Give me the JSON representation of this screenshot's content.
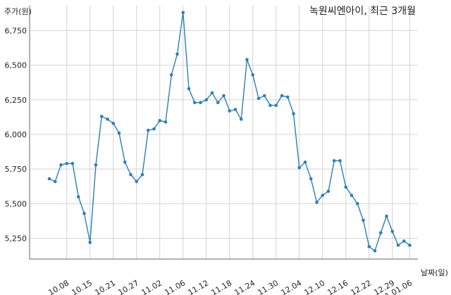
{
  "chart_data": {
    "type": "line",
    "title": "녹원씨엔아이, 최근 3개월",
    "ylabel": "주가(원)",
    "xlabel": "날짜(일)",
    "ylim": [
      5100,
      6930
    ],
    "yticks": [
      5250,
      5500,
      5750,
      6000,
      6250,
      6500,
      6750
    ],
    "ytick_labels": [
      "5,250",
      "5,500",
      "5,750",
      "6,000",
      "6,250",
      "6,500",
      "6,750"
    ],
    "xticks": [
      {
        "index": 3,
        "label": "10.08"
      },
      {
        "index": 7,
        "label": "10.15"
      },
      {
        "index": 11,
        "label": "10.21"
      },
      {
        "index": 15,
        "label": "10.27"
      },
      {
        "index": 19,
        "label": "11.02"
      },
      {
        "index": 23,
        "label": "11.06"
      },
      {
        "index": 27,
        "label": "11.12"
      },
      {
        "index": 31,
        "label": "11.18"
      },
      {
        "index": 35,
        "label": "11.24"
      },
      {
        "index": 39,
        "label": "11.30"
      },
      {
        "index": 43,
        "label": "12.04"
      },
      {
        "index": 47,
        "label": "12.10"
      },
      {
        "index": 51,
        "label": "12.16"
      },
      {
        "index": 55,
        "label": "12.22"
      },
      {
        "index": 59,
        "label": "12.29"
      },
      {
        "index": 62,
        "label": "21.01.06"
      }
    ],
    "grid": true,
    "series": [
      {
        "color": "#2e7fb3",
        "values": [
          5680,
          5660,
          5780,
          5790,
          5790,
          5550,
          5430,
          5220,
          5780,
          6130,
          6110,
          6080,
          6010,
          5800,
          5710,
          5660,
          5710,
          6030,
          6040,
          6100,
          6090,
          6430,
          6580,
          6880,
          6330,
          6230,
          6230,
          6250,
          6300,
          6230,
          6280,
          6170,
          6180,
          6110,
          6540,
          6430,
          6260,
          6280,
          6210,
          6210,
          6280,
          6270,
          6150,
          5760,
          5800,
          5680,
          5510,
          5560,
          5590,
          5810,
          5810,
          5620,
          5560,
          5500,
          5380,
          5190,
          5160,
          5290,
          5410,
          5300,
          5200,
          5230,
          5200
        ]
      }
    ]
  }
}
